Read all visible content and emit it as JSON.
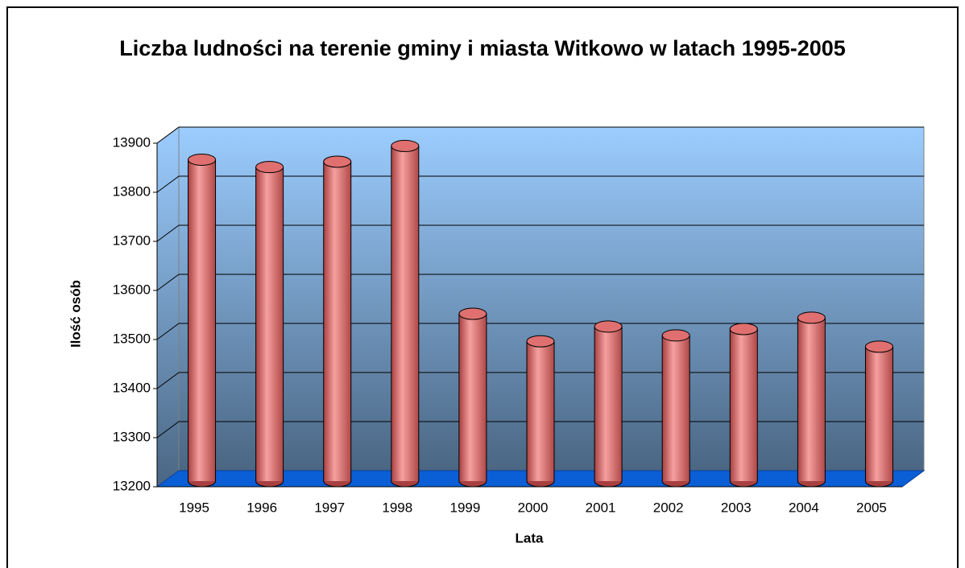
{
  "chart_data": {
    "type": "bar",
    "title": "Liczba ludności na terenie gminy i miasta Witkowo w latach 1995-2005",
    "x_label": "Lata",
    "y_label": "Ilość osób",
    "categories": [
      "1995",
      "1996",
      "1997",
      "1998",
      "1999",
      "2000",
      "2001",
      "2002",
      "2003",
      "2004",
      "2005"
    ],
    "values": [
      13850,
      13835,
      13846,
      13878,
      13536,
      13480,
      13510,
      13492,
      13505,
      13528,
      13469
    ],
    "color": "#e07070",
    "ylim": [
      13200,
      13900
    ],
    "yticks": [
      13200,
      13300,
      13400,
      13500,
      13600,
      13700,
      13800,
      13900
    ],
    "grid": true
  }
}
